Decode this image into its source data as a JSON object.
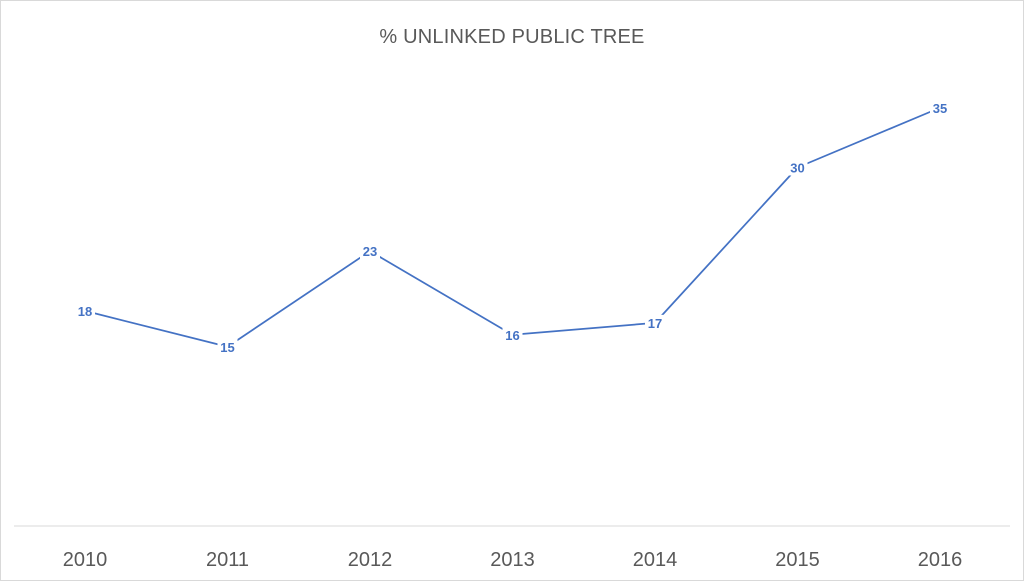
{
  "chart_data": {
    "type": "line",
    "title": "% UNLINKED PUBLIC TREE",
    "xlabel": "",
    "ylabel": "",
    "categories": [
      "2010",
      "2011",
      "2012",
      "2013",
      "2014",
      "2015",
      "2016"
    ],
    "series": [
      {
        "values": [
          18,
          15,
          23,
          16,
          17,
          30,
          35
        ]
      }
    ],
    "ylim": [
      0,
      40
    ],
    "grid": false,
    "legend": "none",
    "data_labels": true,
    "colors": {
      "line": "#4472c4",
      "axis": "#d9d9d9",
      "text": "#595959"
    }
  }
}
